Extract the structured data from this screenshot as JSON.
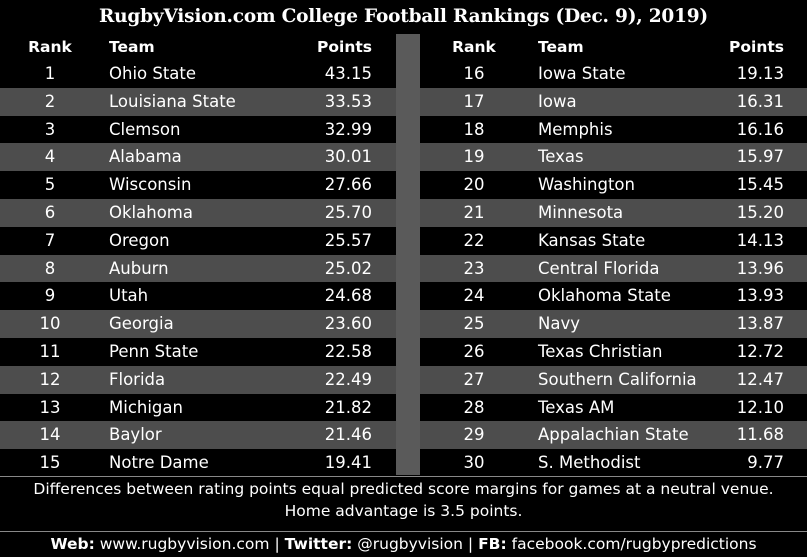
{
  "title": "RugbyVision.com College Football Rankings (Dec. 9), 2019)",
  "headers": {
    "rank": "Rank",
    "team": "Team",
    "points": "Points"
  },
  "rows_left": [
    {
      "rank": "1",
      "team": "Ohio State",
      "points": "43.15"
    },
    {
      "rank": "2",
      "team": "Louisiana State",
      "points": "33.53"
    },
    {
      "rank": "3",
      "team": "Clemson",
      "points": "32.99"
    },
    {
      "rank": "4",
      "team": "Alabama",
      "points": "30.01"
    },
    {
      "rank": "5",
      "team": "Wisconsin",
      "points": "27.66"
    },
    {
      "rank": "6",
      "team": "Oklahoma",
      "points": "25.70"
    },
    {
      "rank": "7",
      "team": "Oregon",
      "points": "25.57"
    },
    {
      "rank": "8",
      "team": "Auburn",
      "points": "25.02"
    },
    {
      "rank": "9",
      "team": "Utah",
      "points": "24.68"
    },
    {
      "rank": "10",
      "team": "Georgia",
      "points": "23.60"
    },
    {
      "rank": "11",
      "team": "Penn State",
      "points": "22.58"
    },
    {
      "rank": "12",
      "team": "Florida",
      "points": "22.49"
    },
    {
      "rank": "13",
      "team": "Michigan",
      "points": "21.82"
    },
    {
      "rank": "14",
      "team": "Baylor",
      "points": "21.46"
    },
    {
      "rank": "15",
      "team": "Notre Dame",
      "points": "19.41"
    }
  ],
  "rows_right": [
    {
      "rank": "16",
      "team": "Iowa State",
      "points": "19.13"
    },
    {
      "rank": "17",
      "team": "Iowa",
      "points": "16.31"
    },
    {
      "rank": "18",
      "team": "Memphis",
      "points": "16.16"
    },
    {
      "rank": "19",
      "team": "Texas",
      "points": "15.97"
    },
    {
      "rank": "20",
      "team": "Washington",
      "points": "15.45"
    },
    {
      "rank": "21",
      "team": "Minnesota",
      "points": "15.20"
    },
    {
      "rank": "22",
      "team": "Kansas State",
      "points": "14.13"
    },
    {
      "rank": "23",
      "team": "Central Florida",
      "points": "13.96"
    },
    {
      "rank": "24",
      "team": "Oklahoma State",
      "points": "13.93"
    },
    {
      "rank": "25",
      "team": "Navy",
      "points": "13.87"
    },
    {
      "rank": "26",
      "team": "Texas Christian",
      "points": "12.72"
    },
    {
      "rank": "27",
      "team": "Southern California",
      "points": "12.47"
    },
    {
      "rank": "28",
      "team": "Texas AM",
      "points": "12.10"
    },
    {
      "rank": "29",
      "team": "Appalachian State",
      "points": "11.68"
    },
    {
      "rank": "30",
      "team": "S. Methodist",
      "points": "9.77"
    }
  ],
  "note_line1": "Differences between rating points equal predicted score margins for games at a neutral venue.",
  "note_line2": "Home advantage is 3.5 points.",
  "footer": {
    "web_label": "Web:",
    "web_value": "www.rugbyvision.com",
    "sep": "|",
    "twitter_label": "Twitter:",
    "twitter_value": "@rugbyvision",
    "fb_label": "FB:",
    "fb_value": "facebook.com/rugbypredictions"
  },
  "colors": {
    "background": "#000000",
    "alt_row": "#4d4d4d",
    "divider": "#5a5a5a",
    "text": "#ffffff"
  }
}
